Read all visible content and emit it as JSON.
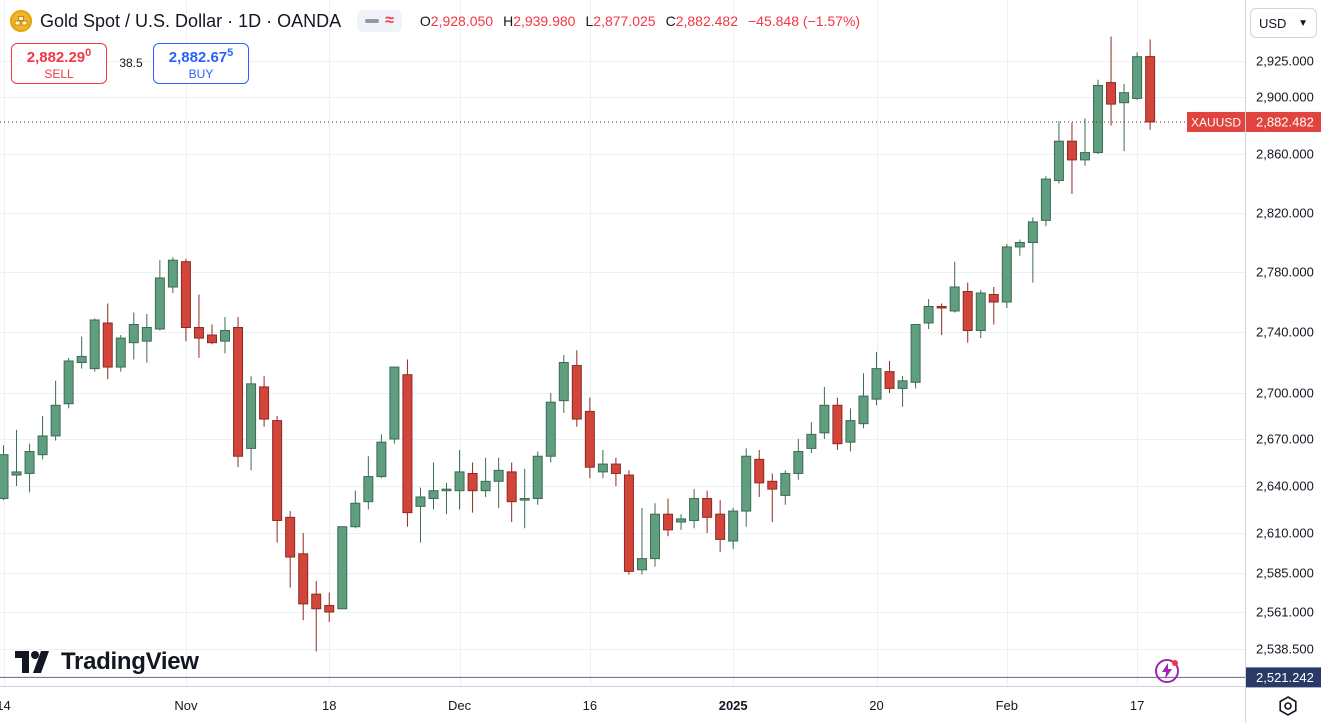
{
  "header": {
    "title": "Gold Spot / U.S. Dollar · 1D · OANDA",
    "symbol_icon": "gold-bars-icon",
    "ohlc": {
      "o_label": "O",
      "o_value": "2,928.050",
      "h_label": "H",
      "h_value": "2,939.980",
      "l_label": "L",
      "l_value": "2,877.025",
      "c_label": "C",
      "c_value": "2,882.482",
      "change": "−45.848 (−1.57%)"
    }
  },
  "trade": {
    "sell_price": "2,882.29",
    "sell_price_small": "0",
    "sell_label": "SELL",
    "spread": "38.5",
    "buy_price": "2,882.67",
    "buy_price_small": "5",
    "buy_label": "BUY"
  },
  "currency": "USD",
  "logo_text": "TradingView",
  "colors": {
    "up": "#5f9e7f",
    "up_border": "#3e6b55",
    "down": "#d2453a",
    "down_border": "#8e2a22",
    "grid": "#edf0f5",
    "axis_text": "#131722",
    "price_label_bg": "#e0443e",
    "last_line_bg": "#434651"
  },
  "chart_data": {
    "type": "candlestick",
    "symbol_label": "XAUUSD",
    "last_price": "2,882.482",
    "y_ticks": [
      {
        "v": 2925,
        "label": "2,925.000"
      },
      {
        "v": 2900,
        "label": "2,900.000"
      },
      {
        "v": 2860,
        "label": "2,860.000"
      },
      {
        "v": 2820,
        "label": "2,820.000"
      },
      {
        "v": 2780,
        "label": "2,780.000"
      },
      {
        "v": 2740,
        "label": "2,740.000"
      },
      {
        "v": 2700,
        "label": "2,700.000"
      },
      {
        "v": 2670,
        "label": "2,670.000"
      },
      {
        "v": 2640,
        "label": "2,640.000"
      },
      {
        "v": 2610,
        "label": "2,610.000"
      },
      {
        "v": 2585,
        "label": "2,585.000"
      },
      {
        "v": 2561,
        "label": "2,561.000"
      },
      {
        "v": 2538.5,
        "label": "2,538.500"
      }
    ],
    "bottom_line": {
      "v": 2521.242,
      "label": "2,521.242"
    },
    "x_labels": [
      {
        "i": 0,
        "label": "14",
        "bold": false
      },
      {
        "i": 14,
        "label": "Nov",
        "bold": false
      },
      {
        "i": 25,
        "label": "18",
        "bold": false
      },
      {
        "i": 35,
        "label": "Dec",
        "bold": false
      },
      {
        "i": 45,
        "label": "16",
        "bold": false
      },
      {
        "i": 56,
        "label": "2025",
        "bold": true
      },
      {
        "i": 67,
        "label": "20",
        "bold": false
      },
      {
        "i": 77,
        "label": "Feb",
        "bold": false
      },
      {
        "i": 87,
        "label": "17",
        "bold": false
      }
    ],
    "candles": [
      {
        "o": 2632,
        "h": 2666,
        "l": 2631,
        "c": 2660
      },
      {
        "o": 2647,
        "h": 2676,
        "l": 2640,
        "c": 2649
      },
      {
        "o": 2648,
        "h": 2667,
        "l": 2636,
        "c": 2662
      },
      {
        "o": 2660,
        "h": 2685,
        "l": 2657,
        "c": 2672
      },
      {
        "o": 2672,
        "h": 2708,
        "l": 2669,
        "c": 2692
      },
      {
        "o": 2693,
        "h": 2723,
        "l": 2690,
        "c": 2721
      },
      {
        "o": 2720,
        "h": 2737,
        "l": 2716,
        "c": 2724
      },
      {
        "o": 2716,
        "h": 2749,
        "l": 2714,
        "c": 2748
      },
      {
        "o": 2746,
        "h": 2759,
        "l": 2709,
        "c": 2717
      },
      {
        "o": 2717,
        "h": 2738,
        "l": 2714,
        "c": 2736
      },
      {
        "o": 2733,
        "h": 2753,
        "l": 2722,
        "c": 2745
      },
      {
        "o": 2734,
        "h": 2752,
        "l": 2720,
        "c": 2743
      },
      {
        "o": 2742,
        "h": 2788,
        "l": 2741,
        "c": 2776
      },
      {
        "o": 2770,
        "h": 2790,
        "l": 2766,
        "c": 2788
      },
      {
        "o": 2787,
        "h": 2789,
        "l": 2734,
        "c": 2743
      },
      {
        "o": 2743,
        "h": 2765,
        "l": 2723,
        "c": 2736
      },
      {
        "o": 2738,
        "h": 2745,
        "l": 2732,
        "c": 2733
      },
      {
        "o": 2734,
        "h": 2750,
        "l": 2726,
        "c": 2741
      },
      {
        "o": 2743,
        "h": 2750,
        "l": 2652,
        "c": 2659
      },
      {
        "o": 2664,
        "h": 2711,
        "l": 2650,
        "c": 2706
      },
      {
        "o": 2704,
        "h": 2711,
        "l": 2678,
        "c": 2683
      },
      {
        "o": 2682,
        "h": 2685,
        "l": 2604,
        "c": 2618
      },
      {
        "o": 2620,
        "h": 2624,
        "l": 2576,
        "c": 2595
      },
      {
        "o": 2597,
        "h": 2610,
        "l": 2556,
        "c": 2566
      },
      {
        "o": 2572,
        "h": 2580,
        "l": 2537,
        "c": 2563
      },
      {
        "o": 2565,
        "h": 2573,
        "l": 2555,
        "c": 2561
      },
      {
        "o": 2563,
        "h": 2614,
        "l": 2563,
        "c": 2614
      },
      {
        "o": 2614,
        "h": 2637,
        "l": 2613,
        "c": 2629
      },
      {
        "o": 2630,
        "h": 2659,
        "l": 2625,
        "c": 2646
      },
      {
        "o": 2646,
        "h": 2673,
        "l": 2645,
        "c": 2668
      },
      {
        "o": 2670,
        "h": 2717,
        "l": 2667,
        "c": 2717
      },
      {
        "o": 2712,
        "h": 2722,
        "l": 2614,
        "c": 2623
      },
      {
        "o": 2627,
        "h": 2639,
        "l": 2604,
        "c": 2633
      },
      {
        "o": 2632,
        "h": 2655,
        "l": 2625,
        "c": 2637
      },
      {
        "o": 2637,
        "h": 2642,
        "l": 2622,
        "c": 2638
      },
      {
        "o": 2637,
        "h": 2663,
        "l": 2625,
        "c": 2649
      },
      {
        "o": 2648,
        "h": 2655,
        "l": 2623,
        "c": 2637
      },
      {
        "o": 2637,
        "h": 2658,
        "l": 2633,
        "c": 2643
      },
      {
        "o": 2643,
        "h": 2658,
        "l": 2626,
        "c": 2650
      },
      {
        "o": 2649,
        "h": 2655,
        "l": 2617,
        "c": 2630
      },
      {
        "o": 2631,
        "h": 2651,
        "l": 2613,
        "c": 2632
      },
      {
        "o": 2632,
        "h": 2662,
        "l": 2628,
        "c": 2659
      },
      {
        "o": 2659,
        "h": 2700,
        "l": 2655,
        "c": 2694
      },
      {
        "o": 2695,
        "h": 2725,
        "l": 2687,
        "c": 2720
      },
      {
        "o": 2718,
        "h": 2728,
        "l": 2678,
        "c": 2683
      },
      {
        "o": 2688,
        "h": 2697,
        "l": 2645,
        "c": 2652
      },
      {
        "o": 2649,
        "h": 2663,
        "l": 2645,
        "c": 2654
      },
      {
        "o": 2654,
        "h": 2658,
        "l": 2640,
        "c": 2648
      },
      {
        "o": 2647,
        "h": 2650,
        "l": 2584,
        "c": 2586
      },
      {
        "o": 2587,
        "h": 2626,
        "l": 2584,
        "c": 2594
      },
      {
        "o": 2594,
        "h": 2629,
        "l": 2589,
        "c": 2622
      },
      {
        "o": 2622,
        "h": 2632,
        "l": 2608,
        "c": 2612
      },
      {
        "o": 2617,
        "h": 2622,
        "l": 2612,
        "c": 2619
      },
      {
        "o": 2618,
        "h": 2638,
        "l": 2613,
        "c": 2632
      },
      {
        "o": 2632,
        "h": 2637,
        "l": 2610,
        "c": 2620
      },
      {
        "o": 2622,
        "h": 2631,
        "l": 2598,
        "c": 2606
      },
      {
        "o": 2605,
        "h": 2626,
        "l": 2600,
        "c": 2624
      },
      {
        "o": 2624,
        "h": 2664,
        "l": 2614,
        "c": 2659
      },
      {
        "o": 2657,
        "h": 2663,
        "l": 2633,
        "c": 2642
      },
      {
        "o": 2643,
        "h": 2648,
        "l": 2617,
        "c": 2638
      },
      {
        "o": 2634,
        "h": 2650,
        "l": 2628,
        "c": 2648
      },
      {
        "o": 2648,
        "h": 2670,
        "l": 2644,
        "c": 2662
      },
      {
        "o": 2664,
        "h": 2681,
        "l": 2661,
        "c": 2673
      },
      {
        "o": 2674,
        "h": 2704,
        "l": 2670,
        "c": 2692
      },
      {
        "o": 2692,
        "h": 2697,
        "l": 2663,
        "c": 2667
      },
      {
        "o": 2668,
        "h": 2690,
        "l": 2662,
        "c": 2682
      },
      {
        "o": 2680,
        "h": 2713,
        "l": 2677,
        "c": 2698
      },
      {
        "o": 2696,
        "h": 2727,
        "l": 2692,
        "c": 2716
      },
      {
        "o": 2714,
        "h": 2721,
        "l": 2700,
        "c": 2703
      },
      {
        "o": 2703,
        "h": 2711,
        "l": 2691,
        "c": 2708
      },
      {
        "o": 2707,
        "h": 2745,
        "l": 2703,
        "c": 2745
      },
      {
        "o": 2746,
        "h": 2762,
        "l": 2742,
        "c": 2757
      },
      {
        "o": 2757,
        "h": 2759,
        "l": 2738,
        "c": 2756
      },
      {
        "o": 2754,
        "h": 2787,
        "l": 2753,
        "c": 2770
      },
      {
        "o": 2767,
        "h": 2773,
        "l": 2733,
        "c": 2741
      },
      {
        "o": 2741,
        "h": 2768,
        "l": 2736,
        "c": 2766
      },
      {
        "o": 2765,
        "h": 2770,
        "l": 2745,
        "c": 2760
      },
      {
        "o": 2760,
        "h": 2799,
        "l": 2756,
        "c": 2797
      },
      {
        "o": 2797,
        "h": 2802,
        "l": 2791,
        "c": 2800
      },
      {
        "o": 2800,
        "h": 2817,
        "l": 2773,
        "c": 2814
      },
      {
        "o": 2815,
        "h": 2845,
        "l": 2811,
        "c": 2843
      },
      {
        "o": 2842,
        "h": 2883,
        "l": 2840,
        "c": 2869
      },
      {
        "o": 2869,
        "h": 2882,
        "l": 2833,
        "c": 2856
      },
      {
        "o": 2856,
        "h": 2885,
        "l": 2852,
        "c": 2861
      },
      {
        "o": 2861,
        "h": 2912,
        "l": 2860,
        "c": 2908
      },
      {
        "o": 2910,
        "h": 2942,
        "l": 2880,
        "c": 2895
      },
      {
        "o": 2896,
        "h": 2909,
        "l": 2862,
        "c": 2903
      },
      {
        "o": 2899,
        "h": 2931,
        "l": 2898,
        "c": 2928
      },
      {
        "o": 2928.05,
        "h": 2939.98,
        "l": 2877.025,
        "c": 2882.482
      }
    ]
  }
}
